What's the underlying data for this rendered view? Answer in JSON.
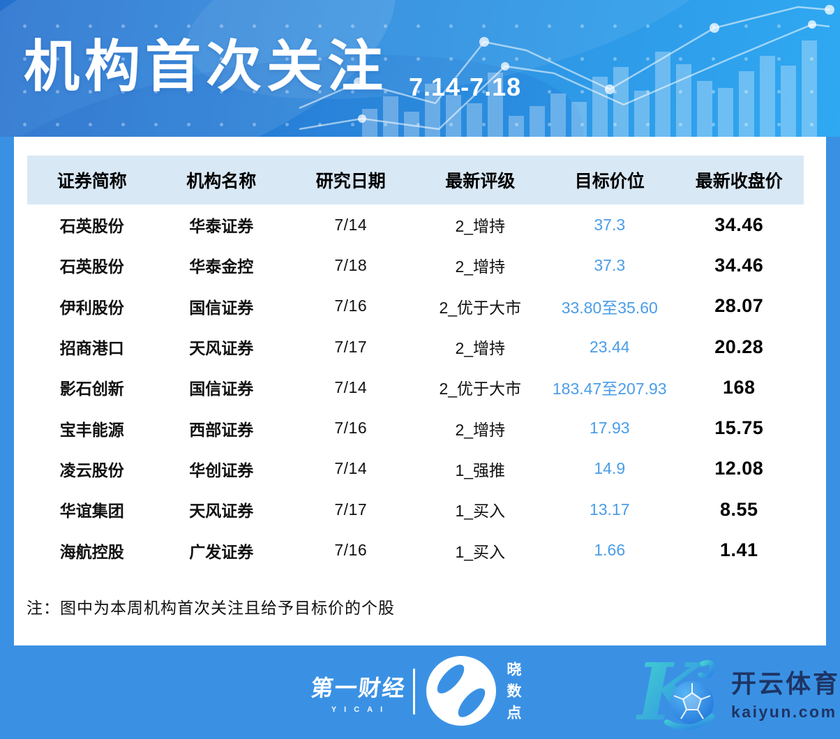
{
  "header": {
    "title": "机构首次关注",
    "date_range": "7.14-7.18"
  },
  "chart_data": {
    "type": "table",
    "title": "机构首次关注",
    "period": "7.14-7.18",
    "columns": [
      "证券简称",
      "机构名称",
      "研究日期",
      "最新评级",
      "目标价位",
      "最新收盘价"
    ],
    "rows": [
      {
        "stock": "石英股份",
        "institution": "华泰证券",
        "date": "7/14",
        "rating": "2_增持",
        "target": "37.3",
        "close": "34.46"
      },
      {
        "stock": "石英股份",
        "institution": "华泰金控",
        "date": "7/18",
        "rating": "2_增持",
        "target": "37.3",
        "close": "34.46"
      },
      {
        "stock": "伊利股份",
        "institution": "国信证券",
        "date": "7/16",
        "rating": "2_优于大市",
        "target": "33.80至35.60",
        "close": "28.07"
      },
      {
        "stock": "招商港口",
        "institution": "天风证券",
        "date": "7/17",
        "rating": "2_增持",
        "target": "23.44",
        "close": "20.28"
      },
      {
        "stock": "影石创新",
        "institution": "国信证券",
        "date": "7/14",
        "rating": "2_优于大市",
        "target": "183.47至207.93",
        "close": "168"
      },
      {
        "stock": "宝丰能源",
        "institution": "西部证券",
        "date": "7/16",
        "rating": "2_增持",
        "target": "17.93",
        "close": "15.75"
      },
      {
        "stock": "凌云股份",
        "institution": "华创证券",
        "date": "7/14",
        "rating": "1_强推",
        "target": "14.9",
        "close": "12.08"
      },
      {
        "stock": "华谊集团",
        "institution": "天风证券",
        "date": "7/17",
        "rating": "1_买入",
        "target": "13.17",
        "close": "8.55"
      },
      {
        "stock": "海航控股",
        "institution": "广发证券",
        "date": "7/16",
        "rating": "1_买入",
        "target": "1.66",
        "close": "1.41"
      }
    ]
  },
  "note": "注：图中为本周机构首次关注且给予目标价的个股",
  "footer": {
    "yicai_name": "第一财经",
    "yicai_sub": "YICAI",
    "xsd_name": "晓数点",
    "kaiyun_name": "开云体育",
    "kaiyun_domain": "kaiyun.com"
  },
  "colors": {
    "page_blue": "#3A91E4",
    "header_gradient_start": "#2470CE",
    "header_gradient_end": "#2FA9F2",
    "table_header_bg": "#D9E8F5",
    "target_price_blue": "#4A9DE8",
    "kaiyun_navy": "#1E3464"
  }
}
